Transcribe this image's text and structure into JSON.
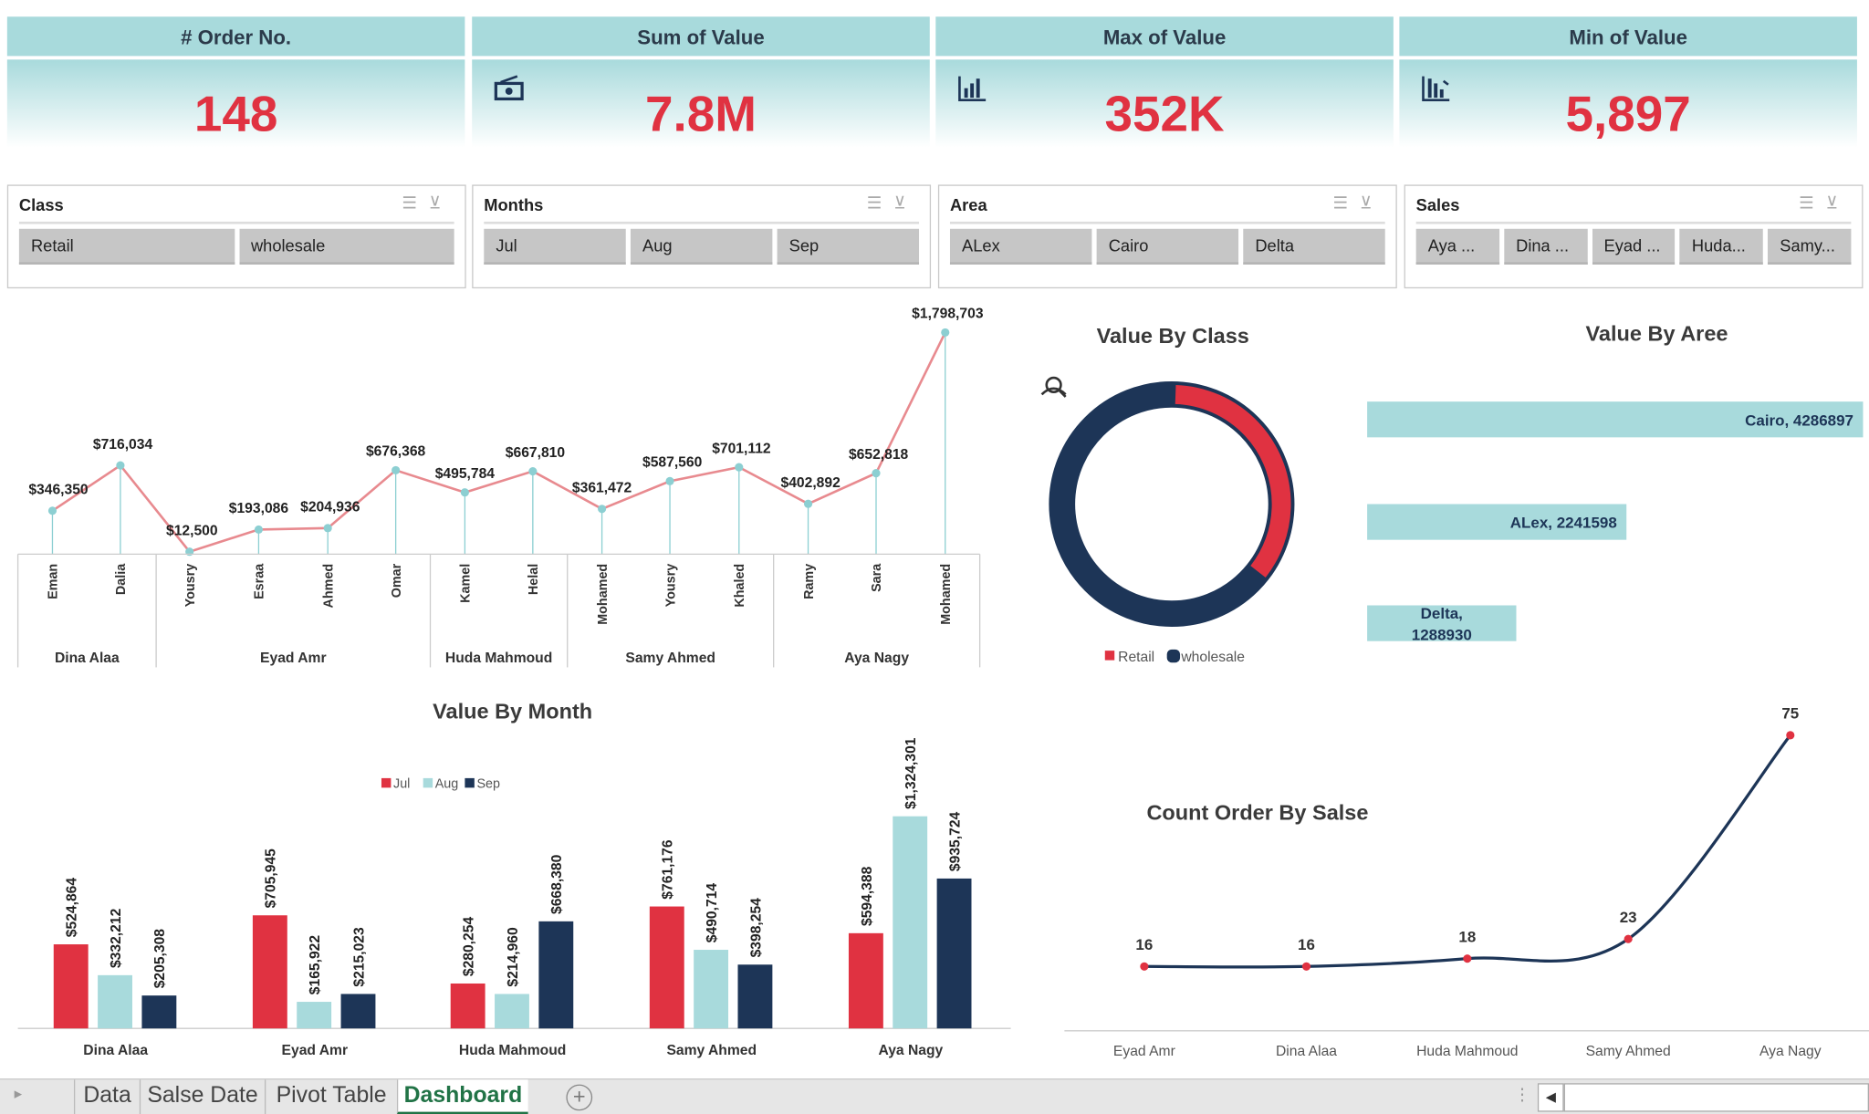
{
  "kpis": [
    {
      "title": "# Order No.",
      "value": "148",
      "icon": ""
    },
    {
      "title": "Sum of Value",
      "value": "7.8M",
      "icon": "money-icon"
    },
    {
      "title": "Max of Value",
      "value": "352K",
      "icon": "bar-chart-icon"
    },
    {
      "title": "Min of Value",
      "value": "5,897",
      "icon": "bar-chart-down-icon"
    }
  ],
  "slicers": [
    {
      "title": "Class",
      "items": [
        "Retail",
        "wholesale"
      ]
    },
    {
      "title": "Months",
      "items": [
        "Jul",
        "Aug",
        "Sep"
      ]
    },
    {
      "title": "Area",
      "items": [
        "ALex",
        "Cairo",
        "Delta"
      ]
    },
    {
      "title": "Sales",
      "items": [
        "Aya ...",
        "Dina ...",
        "Eyad ...",
        "Huda...",
        "Samy..."
      ]
    }
  ],
  "colors": {
    "accent": "#a8dadc",
    "red": "#e03241",
    "navy": "#1d3557",
    "line": "#e88a8f"
  },
  "chart_data": [
    {
      "type": "line",
      "title": "",
      "groups": [
        {
          "name": "Dina Alaa",
          "span": 2
        },
        {
          "name": "Eyad Amr",
          "span": 4
        },
        {
          "name": "Huda Mahmoud",
          "span": 2
        },
        {
          "name": "Samy Ahmed",
          "span": 3
        },
        {
          "name": "Aya Nagy",
          "span": 3
        }
      ],
      "categories": [
        "Eman",
        "Dalia",
        "Yousry",
        "Esraa",
        "Ahmed",
        "Omar",
        "Kamel",
        "Helal",
        "Mohamed",
        "Yousry",
        "Khaled",
        "Ramy",
        "Sara",
        "Mohamed"
      ],
      "values": [
        346350,
        716034,
        12500,
        193086,
        204936,
        676368,
        495784,
        667810,
        361472,
        587560,
        701112,
        402892,
        652818,
        1798703
      ],
      "labels": [
        "$346,350",
        "$716,034",
        "$12,500",
        "$193,086",
        "$204,936",
        "$676,368",
        "$495,784",
        "$667,810",
        "$361,472",
        "$587,560",
        "$701,112",
        "$402,892",
        "$652,818",
        "$1,798,703"
      ]
    },
    {
      "type": "pie",
      "title": "Value By Class",
      "categories": [
        "Retail",
        "wholesale"
      ],
      "values": [
        35,
        65
      ],
      "legend": "bottom"
    },
    {
      "type": "bar",
      "title": "Value By Aree",
      "categories": [
        "Cairo",
        "ALex",
        "Delta"
      ],
      "values": [
        4286897,
        2241598,
        1288930
      ],
      "labels": [
        "Cairo, 4286897",
        "ALex, 2241598",
        "Delta, 1288930"
      ]
    },
    {
      "type": "bar",
      "title": "Value By Month",
      "legend": "top",
      "categories": [
        "Dina Alaa",
        "Eyad Amr",
        "Huda Mahmoud",
        "Samy Ahmed",
        "Aya Nagy"
      ],
      "series": [
        {
          "name": "Jul",
          "values": [
            524864,
            705945,
            280254,
            761176,
            594388
          ],
          "labels": [
            "$524,864",
            "$705,945",
            "$280,254",
            "$761,176",
            "$594,388"
          ]
        },
        {
          "name": "Aug",
          "values": [
            332212,
            165922,
            214960,
            490714,
            1324301
          ],
          "labels": [
            "$332,212",
            "$165,922",
            "$214,960",
            "$490,714",
            "$1,324,301"
          ]
        },
        {
          "name": "Sep",
          "values": [
            205308,
            215023,
            668380,
            398254,
            935724
          ],
          "labels": [
            "$205,308",
            "$215,023",
            "$668,380",
            "$398,254",
            "$935,724"
          ]
        }
      ]
    },
    {
      "type": "line",
      "title": "Count Order By Salse",
      "categories": [
        "Eyad Amr",
        "Dina Alaa",
        "Huda Mahmoud",
        "Samy Ahmed",
        "Aya Nagy"
      ],
      "values": [
        16,
        16,
        18,
        23,
        75
      ]
    }
  ],
  "tabs": [
    "Data",
    "Salse Date",
    "Pivot Table",
    "Dashboard"
  ],
  "active_tab": "Dashboard"
}
